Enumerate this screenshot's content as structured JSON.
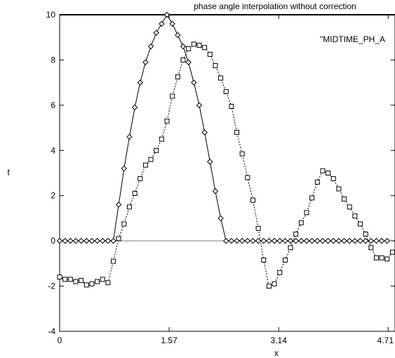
{
  "chart_data": {
    "type": "line",
    "title": "phase angle interpolation without correction",
    "xlabel": "x",
    "ylabel": "f",
    "xlim": [
      0,
      4.81
    ],
    "ylim": [
      -4,
      10
    ],
    "x_ticks": [
      {
        "value": 0,
        "label": "0"
      },
      {
        "value": 1.5708,
        "label": "1.57"
      },
      {
        "value": 3.1416,
        "label": "3.14"
      },
      {
        "value": 4.7124,
        "label": "4.71"
      }
    ],
    "y_ticks": [
      -4,
      -2,
      0,
      2,
      4,
      6,
      8,
      10
    ],
    "zero_line": true,
    "legend_entries": [
      "\"MIDTIME_PH_A"
    ],
    "legend_position": "top-right",
    "series": [
      {
        "marker": "diamond",
        "line_style": "solid",
        "color": "#000000",
        "x": [
          0.0,
          0.077,
          0.154,
          0.231,
          0.308,
          0.385,
          0.462,
          0.539,
          0.616,
          0.693,
          0.77,
          0.847,
          0.924,
          1.001,
          1.078,
          1.155,
          1.232,
          1.309,
          1.386,
          1.463,
          1.54,
          1.617,
          1.694,
          1.771,
          1.848,
          1.925,
          2.002,
          2.079,
          2.156,
          2.233,
          2.31,
          2.387,
          2.464,
          2.541,
          2.618,
          2.695,
          2.772,
          2.849,
          2.926,
          3.003,
          3.08,
          3.157,
          3.234,
          3.311,
          3.388,
          3.465,
          3.542,
          3.619,
          3.696,
          3.773,
          3.85,
          3.927,
          4.004,
          4.081,
          4.158,
          4.235,
          4.312,
          4.389,
          4.466,
          4.543,
          4.62,
          4.697
        ],
        "y": [
          0,
          0,
          0,
          0,
          0,
          0,
          0,
          0,
          0,
          0,
          0,
          1.6,
          3.2,
          4.6,
          5.9,
          7.0,
          7.9,
          8.6,
          9.2,
          9.6,
          10.0,
          9.6,
          9.1,
          8.6,
          7.9,
          7.0,
          6.0,
          4.8,
          3.5,
          2.2,
          1.0,
          0,
          0,
          0,
          0,
          0,
          0,
          0,
          0,
          0,
          0,
          0,
          0,
          0,
          0,
          0,
          0,
          0,
          0,
          0,
          0,
          0,
          0,
          0,
          0,
          0,
          0,
          0,
          0,
          0,
          0,
          0
        ]
      },
      {
        "marker": "square",
        "line_style": "dotted",
        "color": "#000000",
        "x": [
          0.0,
          0.077,
          0.154,
          0.231,
          0.308,
          0.385,
          0.462,
          0.539,
          0.616,
          0.693,
          0.77,
          0.847,
          0.924,
          1.001,
          1.078,
          1.155,
          1.232,
          1.309,
          1.386,
          1.463,
          1.54,
          1.617,
          1.694,
          1.771,
          1.848,
          1.925,
          2.002,
          2.079,
          2.156,
          2.233,
          2.31,
          2.387,
          2.464,
          2.541,
          2.618,
          2.695,
          2.772,
          2.849,
          2.926,
          3.003,
          3.08,
          3.157,
          3.234,
          3.311,
          3.388,
          3.465,
          3.542,
          3.619,
          3.696,
          3.773,
          3.85,
          3.927,
          4.004,
          4.081,
          4.158,
          4.235,
          4.312,
          4.389,
          4.466,
          4.543,
          4.62,
          4.697,
          4.774
        ],
        "y": [
          -1.6,
          -1.7,
          -1.7,
          -1.8,
          -1.75,
          -1.95,
          -1.9,
          -1.8,
          -1.7,
          -1.85,
          -0.9,
          0.1,
          0.75,
          1.5,
          2.1,
          2.75,
          3.35,
          3.6,
          4.0,
          4.5,
          5.3,
          6.4,
          7.25,
          8.0,
          8.5,
          8.7,
          8.65,
          8.55,
          8.25,
          7.75,
          7.2,
          6.6,
          5.95,
          4.8,
          3.85,
          2.8,
          1.8,
          0.55,
          -0.85,
          -2.0,
          -1.9,
          -1.4,
          -0.85,
          -0.3,
          0.3,
          0.8,
          1.25,
          1.9,
          2.6,
          3.1,
          3.0,
          2.75,
          2.3,
          1.85,
          1.5,
          1.1,
          0.75,
          0.3,
          -0.3,
          -0.75,
          -0.75,
          -0.8,
          -0.5
        ]
      }
    ]
  }
}
